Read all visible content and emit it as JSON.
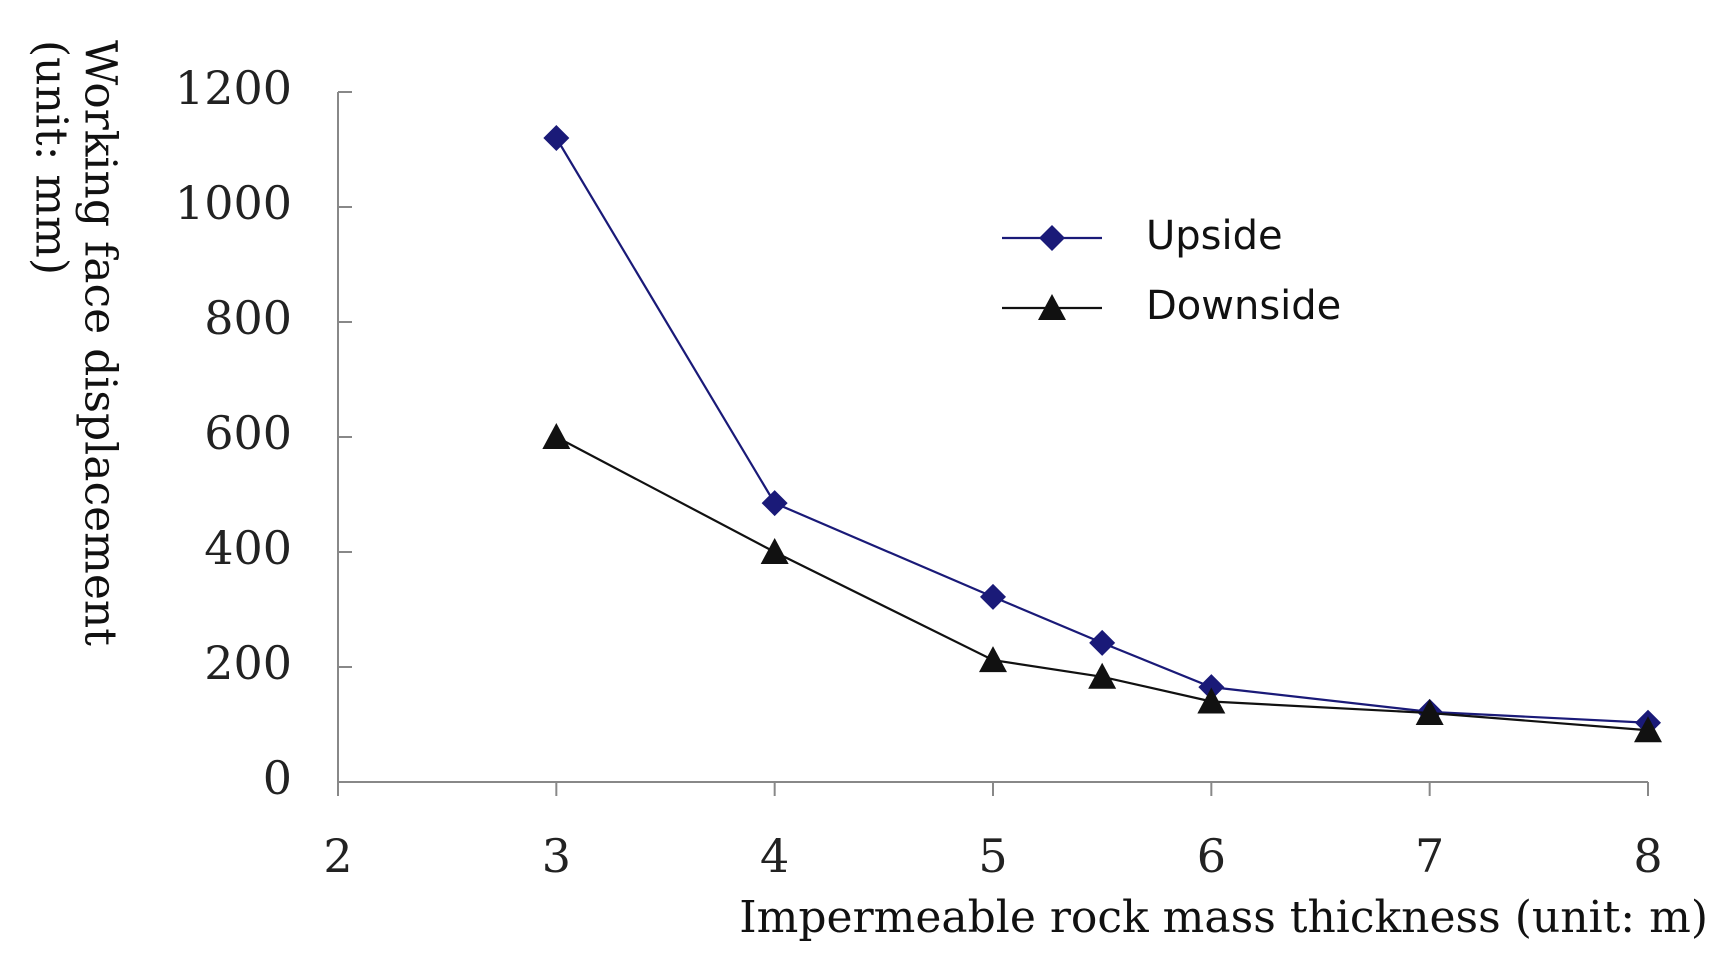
{
  "chart_data": {
    "type": "line",
    "x": [
      3,
      4,
      5,
      5.5,
      6,
      7,
      8
    ],
    "series": [
      {
        "name": "Upside",
        "color": "#1a1a78",
        "marker": "diamond",
        "values": [
          1120,
          485,
          322,
          242,
          165,
          122,
          103
        ]
      },
      {
        "name": "Downside",
        "color": "#111111",
        "marker": "triangle",
        "values": [
          600,
          400,
          212,
          183,
          140,
          120,
          90
        ]
      }
    ],
    "xlim": [
      2,
      8
    ],
    "ylim": [
      0,
      1200
    ],
    "xticks": [
      2,
      3,
      4,
      5,
      6,
      7,
      8
    ],
    "yticks": [
      0,
      200,
      400,
      600,
      800,
      1000,
      1200
    ],
    "xlabel": "Impermeable rock mass thickness (unit: m)",
    "ylabel_line1": "Working face displacement",
    "ylabel_line2": "(unit: mm)",
    "legend_position": "top-right",
    "grid": false
  }
}
